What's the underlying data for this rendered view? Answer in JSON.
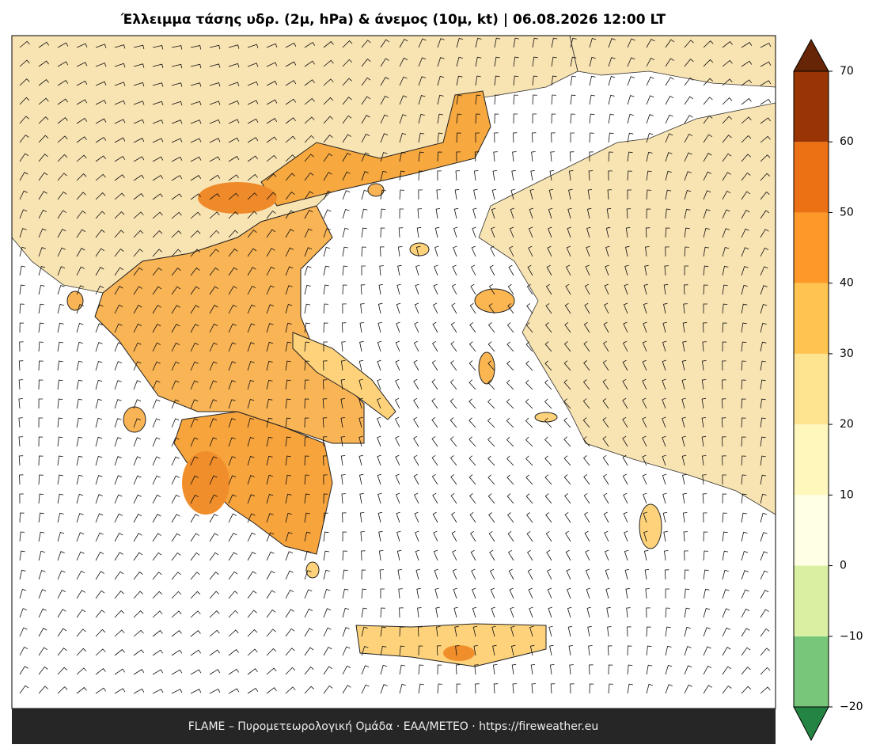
{
  "title": "Έλλειμμα τάσης υδρ. (2μ, hPa) & άνεμος (10μ, kt)  |  06.08.2026 12:00 LT",
  "colorbar": {
    "ticks": [
      {
        "value": -20,
        "label": "−20"
      },
      {
        "value": -10,
        "label": "−10"
      },
      0,
      10,
      20,
      30,
      40,
      50,
      60,
      70
    ],
    "lim": [
      -20,
      70
    ],
    "colors": [
      "#78c679",
      "#d9f0a3",
      "#ffffe5",
      "#fff7bc",
      "#fee391",
      "#fec44f",
      "#fe9929",
      "#ec7014",
      "#993404"
    ],
    "under_color": "#238443",
    "over_color": "#662506"
  },
  "footer": "FLAME – Πυρομετεωρολογική Ομάδα · ΕΑΑ/METEO · https://fireweather.eu"
}
